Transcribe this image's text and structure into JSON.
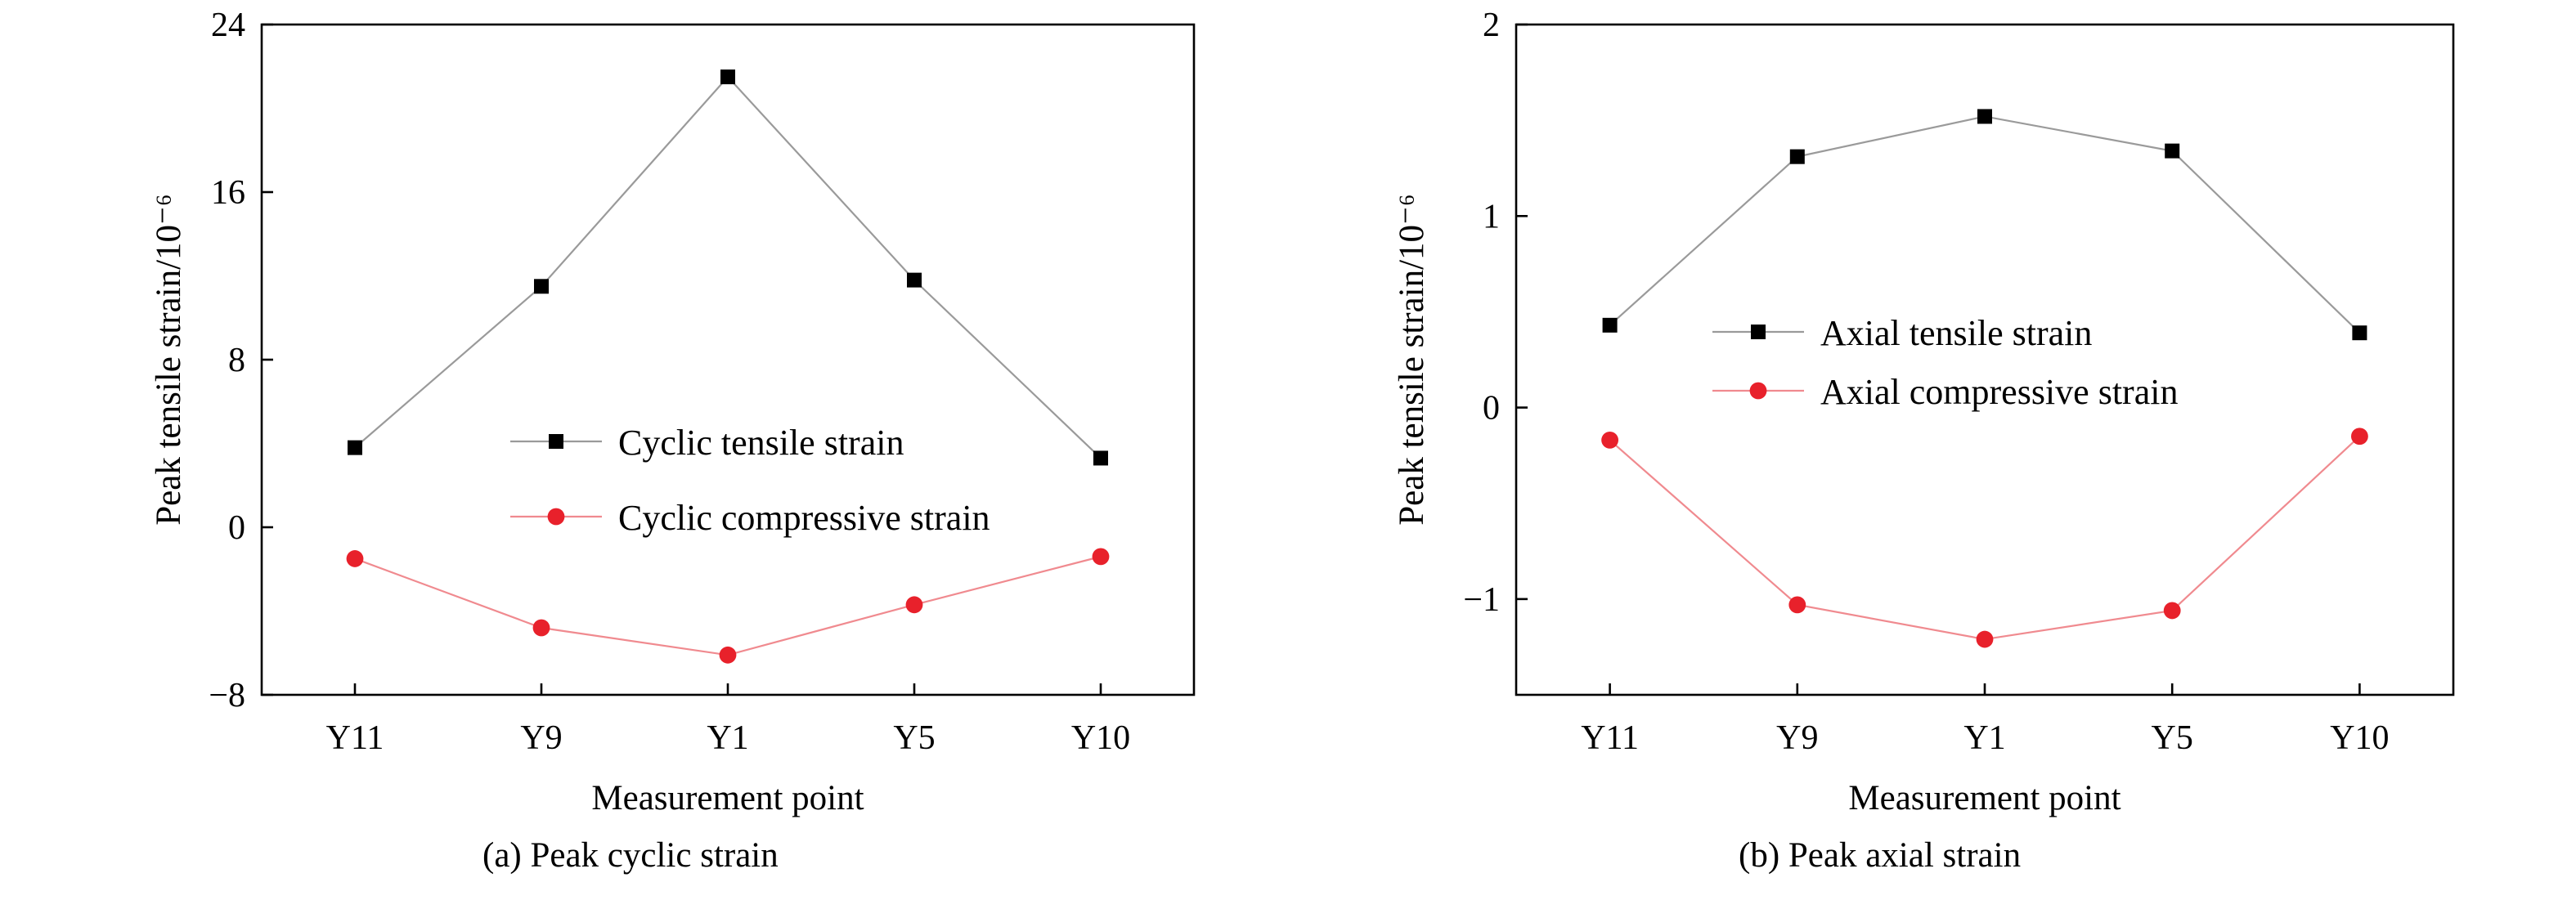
{
  "colors": {
    "tensile_marker": "#000000",
    "tensile_line": "#9a9a9a",
    "compressive_marker": "#e8212b",
    "compressive_line": "#f08a8f"
  },
  "chart_data": [
    {
      "type": "line",
      "caption": "(a) Peak cyclic strain",
      "xlabel": "Measurement point",
      "ylabel": "Peak tensile strain/10⁻⁶",
      "categories": [
        "Y11",
        "Y9",
        "Y1",
        "Y5",
        "Y10"
      ],
      "ylim": [
        -8,
        24
      ],
      "yticks": [
        -8,
        0,
        8,
        16,
        24
      ],
      "ytick_labels": [
        "−8",
        "0",
        "8",
        "16",
        "24"
      ],
      "grid": false,
      "legend_placement": "center-right",
      "series": [
        {
          "name": "Cyclic tensile strain",
          "marker": "square",
          "values": [
            3.8,
            11.5,
            21.5,
            11.8,
            3.3
          ]
        },
        {
          "name": "Cyclic compressive strain",
          "marker": "circle",
          "values": [
            -1.5,
            -4.8,
            -6.1,
            -3.7,
            -1.4
          ]
        }
      ]
    },
    {
      "type": "line",
      "caption": "(b) Peak axial strain",
      "xlabel": "Measurement point",
      "ylabel": "Peak tensile strain/10⁻⁶",
      "categories": [
        "Y11",
        "Y9",
        "Y1",
        "Y5",
        "Y10"
      ],
      "ylim": [
        -1.5,
        2
      ],
      "yticks": [
        -1,
        0,
        1,
        2
      ],
      "ytick_labels": [
        "−1",
        "0",
        "1",
        "2"
      ],
      "grid": false,
      "legend_placement": "upper-center",
      "series": [
        {
          "name": "Axial tensile strain",
          "marker": "square",
          "values": [
            0.43,
            1.31,
            1.52,
            1.34,
            0.39
          ]
        },
        {
          "name": "Axial compressive strain",
          "marker": "circle",
          "values": [
            -0.17,
            -1.03,
            -1.21,
            -1.06,
            -0.15
          ]
        }
      ]
    }
  ]
}
